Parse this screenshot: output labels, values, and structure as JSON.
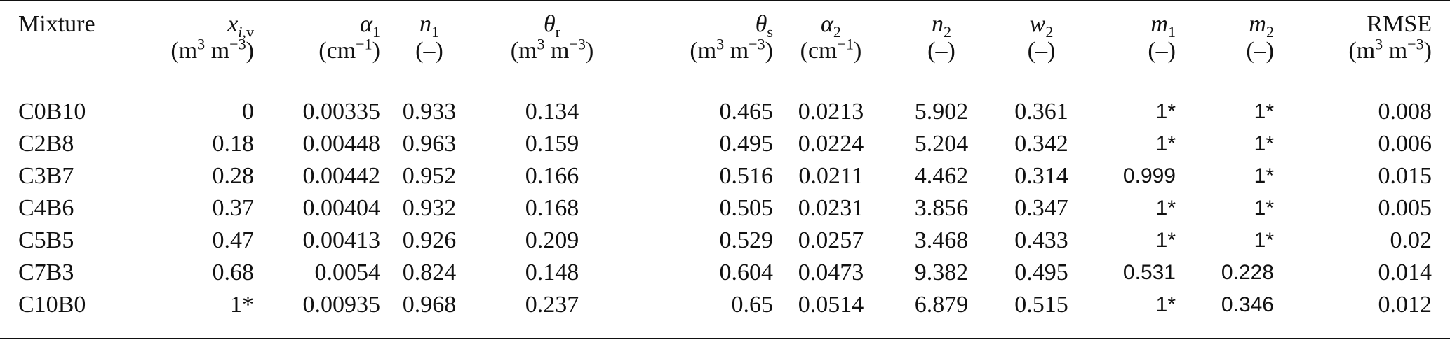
{
  "table": {
    "columns": [
      {
        "key": "mixture",
        "label": "Mixture",
        "unit": ""
      },
      {
        "key": "xiv",
        "label": "x_{i,v}",
        "unit": "(m3 m−3)"
      },
      {
        "key": "alpha1",
        "label": "α1",
        "unit": "(cm−1)"
      },
      {
        "key": "n1",
        "label": "n1",
        "unit": "(–)"
      },
      {
        "key": "theta_r",
        "label": "θr",
        "unit": "(m3 m−3)"
      },
      {
        "key": "theta_s",
        "label": "θs",
        "unit": "(m3 m−3)"
      },
      {
        "key": "alpha2",
        "label": "α2",
        "unit": "(cm−1)"
      },
      {
        "key": "n2",
        "label": "n2",
        "unit": "(–)"
      },
      {
        "key": "w2",
        "label": "w2",
        "unit": "(–)"
      },
      {
        "key": "m1",
        "label": "m1",
        "unit": "(–)"
      },
      {
        "key": "m2",
        "label": "m2",
        "unit": "(–)"
      },
      {
        "key": "rmse",
        "label": "RMSE",
        "unit": "(m3 m−3)"
      }
    ],
    "header": {
      "mixture": "Mixture",
      "rmse": "RMSE",
      "unit_dash": "(–)"
    },
    "rows": [
      {
        "mixture": "C0B10",
        "xiv": "0",
        "alpha1": "0.00335",
        "n1": "0.933",
        "theta_r": "0.134",
        "theta_s": "0.465",
        "alpha2": "0.0213",
        "n2": "5.902",
        "w2": "0.361",
        "m1": "1*",
        "m2": "1*",
        "rmse": "0.008"
      },
      {
        "mixture": "C2B8",
        "xiv": "0.18",
        "alpha1": "0.00448",
        "n1": "0.963",
        "theta_r": "0.159",
        "theta_s": "0.495",
        "alpha2": "0.0224",
        "n2": "5.204",
        "w2": "0.342",
        "m1": "1*",
        "m2": "1*",
        "rmse": "0.006"
      },
      {
        "mixture": "C3B7",
        "xiv": "0.28",
        "alpha1": "0.00442",
        "n1": "0.952",
        "theta_r": "0.166",
        "theta_s": "0.516",
        "alpha2": "0.0211",
        "n2": "4.462",
        "w2": "0.314",
        "m1": "0.999",
        "m2": "1*",
        "rmse": "0.015"
      },
      {
        "mixture": "C4B6",
        "xiv": "0.37",
        "alpha1": "0.00404",
        "n1": "0.932",
        "theta_r": "0.168",
        "theta_s": "0.505",
        "alpha2": "0.0231",
        "n2": "3.856",
        "w2": "0.347",
        "m1": "1*",
        "m2": "1*",
        "rmse": "0.005"
      },
      {
        "mixture": "C5B5",
        "xiv": "0.47",
        "alpha1": "0.00413",
        "n1": "0.926",
        "theta_r": "0.209",
        "theta_s": "0.529",
        "alpha2": "0.0257",
        "n2": "3.468",
        "w2": "0.433",
        "m1": "1*",
        "m2": "1*",
        "rmse": "0.02"
      },
      {
        "mixture": "C7B3",
        "xiv": "0.68",
        "alpha1": "0.0054",
        "n1": "0.824",
        "theta_r": "0.148",
        "theta_s": "0.604",
        "alpha2": "0.0473",
        "n2": "9.382",
        "w2": "0.495",
        "m1": "0.531",
        "m2": "0.228",
        "rmse": "0.014"
      },
      {
        "mixture": "C10B0",
        "xiv": "1*",
        "alpha1": "0.00935",
        "n1": "0.968",
        "theta_r": "0.237",
        "theta_s": "0.65",
        "alpha2": "0.0514",
        "n2": "6.879",
        "w2": "0.515",
        "m1": "1*",
        "m2": "0.346",
        "rmse": "0.012"
      }
    ]
  }
}
